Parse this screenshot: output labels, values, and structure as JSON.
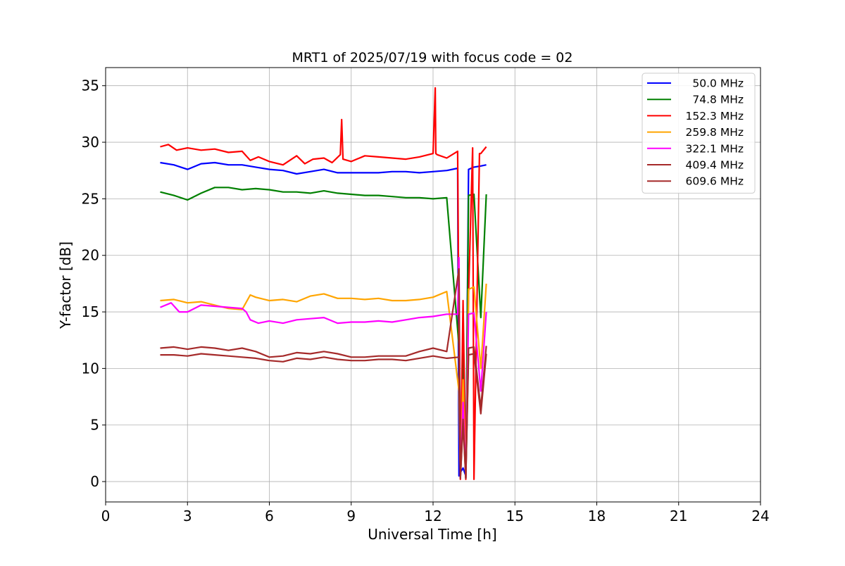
{
  "chart_data": {
    "type": "line",
    "title": "MRT1 of 2025/07/19 with focus code = 02",
    "xlabel": "Universal Time [h]",
    "ylabel": "Y-factor [dB]",
    "xlim": [
      0,
      24
    ],
    "ylim": [
      -1.8,
      36.6
    ],
    "xticks": [
      0,
      3,
      6,
      9,
      12,
      15,
      18,
      21,
      24
    ],
    "yticks": [
      0,
      5,
      10,
      15,
      20,
      25,
      30,
      35
    ],
    "grid": true,
    "legend_position": "top-right",
    "series": [
      {
        "name": "50.0 MHz",
        "color": "#0000ff",
        "x": [
          2.0,
          2.5,
          3.0,
          3.5,
          4.0,
          4.5,
          5.0,
          5.5,
          6.0,
          6.5,
          7.0,
          7.5,
          8.0,
          8.5,
          9.0,
          9.5,
          10.0,
          10.5,
          11.0,
          11.5,
          12.0,
          12.5,
          12.9,
          12.95,
          13.0,
          13.1,
          13.2,
          13.3,
          13.5,
          13.75,
          13.95
        ],
        "y": [
          28.2,
          28.0,
          27.6,
          28.1,
          28.2,
          28.0,
          28.0,
          27.8,
          27.6,
          27.5,
          27.2,
          27.4,
          27.6,
          27.3,
          27.3,
          27.3,
          27.3,
          27.4,
          27.4,
          27.3,
          27.4,
          27.5,
          27.7,
          0.5,
          0.8,
          1.2,
          0.5,
          27.6,
          27.8,
          27.9,
          28.0
        ]
      },
      {
        "name": "74.8 MHz",
        "color": "#008000",
        "x": [
          2.0,
          2.5,
          3.0,
          3.5,
          4.0,
          4.5,
          5.0,
          5.5,
          6.0,
          6.5,
          7.0,
          7.5,
          8.0,
          8.5,
          9.0,
          9.5,
          10.0,
          10.5,
          11.0,
          11.5,
          12.0,
          12.5,
          12.95,
          13.0,
          13.1,
          13.2,
          13.3,
          13.5,
          13.75,
          13.95
        ],
        "y": [
          25.6,
          25.3,
          24.9,
          25.5,
          26.0,
          26.0,
          25.8,
          25.9,
          25.8,
          25.6,
          25.6,
          25.5,
          25.7,
          25.5,
          25.4,
          25.3,
          25.3,
          25.2,
          25.1,
          25.1,
          25.0,
          25.1,
          12.0,
          0.4,
          12.5,
          0.3,
          25.3,
          25.4,
          14.5,
          25.4
        ]
      },
      {
        "name": "152.3 MHz",
        "color": "#ff0000",
        "x": [
          2.0,
          2.3,
          2.6,
          3.0,
          3.5,
          4.0,
          4.5,
          5.0,
          5.3,
          5.6,
          6.0,
          6.5,
          7.0,
          7.3,
          7.6,
          8.0,
          8.3,
          8.6,
          8.65,
          8.7,
          9.0,
          9.5,
          10.0,
          10.5,
          11.0,
          11.5,
          12.0,
          12.08,
          12.1,
          12.15,
          12.5,
          12.9,
          12.95,
          13.0,
          13.1,
          13.2,
          13.3,
          13.45,
          13.5,
          13.7,
          13.75,
          13.95
        ],
        "y": [
          29.6,
          29.8,
          29.3,
          29.5,
          29.3,
          29.4,
          29.1,
          29.2,
          28.4,
          28.7,
          28.3,
          28.0,
          28.8,
          28.1,
          28.5,
          28.6,
          28.2,
          28.9,
          32.0,
          28.5,
          28.3,
          28.8,
          28.7,
          28.6,
          28.5,
          28.7,
          29.0,
          34.8,
          29.0,
          28.9,
          28.6,
          29.2,
          13.0,
          0.2,
          16.0,
          0.2,
          16.5,
          29.5,
          0.2,
          29.0,
          29.0,
          29.6
        ]
      },
      {
        "name": "259.8 MHz",
        "color": "#ffa500",
        "x": [
          2.0,
          2.5,
          3.0,
          3.5,
          4.0,
          4.5,
          5.0,
          5.3,
          5.5,
          6.0,
          6.5,
          7.0,
          7.5,
          8.0,
          8.5,
          9.0,
          9.5,
          10.0,
          10.5,
          11.0,
          11.5,
          12.0,
          12.5,
          12.95,
          13.0,
          13.1,
          13.2,
          13.3,
          13.5,
          13.75,
          13.95
        ],
        "y": [
          16.0,
          16.1,
          15.8,
          15.9,
          15.6,
          15.3,
          15.2,
          16.5,
          16.3,
          16.0,
          16.1,
          15.9,
          16.4,
          16.6,
          16.2,
          16.2,
          16.1,
          16.2,
          16.0,
          16.0,
          16.1,
          16.3,
          16.8,
          8.0,
          0.3,
          9.0,
          0.3,
          17.0,
          17.2,
          10.0,
          17.5
        ]
      },
      {
        "name": "322.1 MHz",
        "color": "#ff00ff",
        "x": [
          2.0,
          2.4,
          2.7,
          3.0,
          3.5,
          4.0,
          4.5,
          5.0,
          5.15,
          5.3,
          5.6,
          6.0,
          6.5,
          7.0,
          7.5,
          8.0,
          8.5,
          9.0,
          9.5,
          10.0,
          10.5,
          11.0,
          11.5,
          12.0,
          12.5,
          12.9,
          12.95,
          13.0,
          13.1,
          13.2,
          13.3,
          13.5,
          13.75,
          13.95
        ],
        "y": [
          15.4,
          15.8,
          15.0,
          15.0,
          15.6,
          15.5,
          15.4,
          15.3,
          15.0,
          14.3,
          14.0,
          14.2,
          14.0,
          14.3,
          14.4,
          14.5,
          14.0,
          14.1,
          14.1,
          14.2,
          14.1,
          14.3,
          14.5,
          14.6,
          14.8,
          14.8,
          19.8,
          0.3,
          7.0,
          0.3,
          14.8,
          14.9,
          8.0,
          15.0
        ]
      },
      {
        "name": "409.4 MHz",
        "color": "#a52a2a",
        "x": [
          2.0,
          2.5,
          3.0,
          3.5,
          4.0,
          4.5,
          5.0,
          5.5,
          6.0,
          6.5,
          7.0,
          7.5,
          8.0,
          8.5,
          9.0,
          9.5,
          10.0,
          10.5,
          11.0,
          11.5,
          12.0,
          12.5,
          12.95,
          13.0,
          13.1,
          13.2,
          13.3,
          13.5,
          13.75,
          13.95
        ],
        "y": [
          11.8,
          11.9,
          11.7,
          11.9,
          11.8,
          11.6,
          11.8,
          11.5,
          11.0,
          11.1,
          11.4,
          11.3,
          11.5,
          11.3,
          11.0,
          11.0,
          11.1,
          11.1,
          11.1,
          11.5,
          11.8,
          11.5,
          18.8,
          0.3,
          5.5,
          0.3,
          11.8,
          11.9,
          6.5,
          12.0
        ]
      },
      {
        "name": "609.6 MHz",
        "color": "#a52a2a",
        "x": [
          2.0,
          2.5,
          3.0,
          3.5,
          4.0,
          4.5,
          5.0,
          5.5,
          6.0,
          6.5,
          7.0,
          7.5,
          8.0,
          8.5,
          9.0,
          9.5,
          10.0,
          10.5,
          11.0,
          11.5,
          12.0,
          12.5,
          12.95,
          13.0,
          13.1,
          13.2,
          13.3,
          13.5,
          13.75,
          13.95
        ],
        "y": [
          11.2,
          11.2,
          11.1,
          11.3,
          11.2,
          11.1,
          11.0,
          10.9,
          10.7,
          10.6,
          10.9,
          10.8,
          11.0,
          10.8,
          10.7,
          10.7,
          10.8,
          10.8,
          10.7,
          10.9,
          11.1,
          10.9,
          11.0,
          0.3,
          5.2,
          0.3,
          11.2,
          11.3,
          6.0,
          11.3
        ]
      }
    ]
  }
}
